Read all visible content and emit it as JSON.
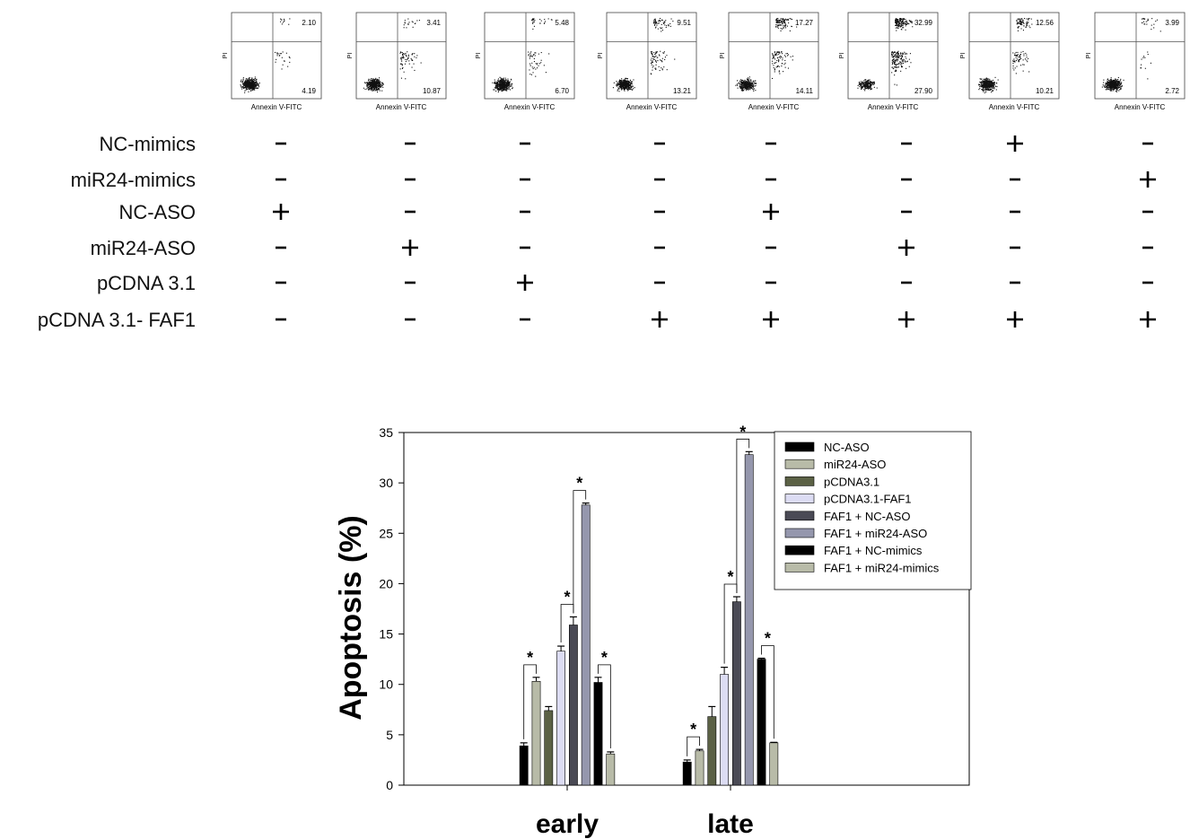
{
  "flow_panels": {
    "x_axis_label": "Annexin V-FITC",
    "y_axis_label": "PI",
    "panels": [
      {
        "upper_right": "2.10",
        "lower_right": "4.19"
      },
      {
        "upper_right": "3.41",
        "lower_right": "10.87"
      },
      {
        "upper_right": "5.48",
        "lower_right": "6.70"
      },
      {
        "upper_right": "9.51",
        "lower_right": "13.21"
      },
      {
        "upper_right": "17.27",
        "lower_right": "14.11"
      },
      {
        "upper_right": "32.99",
        "lower_right": "27.90"
      },
      {
        "upper_right": "12.56",
        "lower_right": "10.21"
      },
      {
        "upper_right": "3.99",
        "lower_right": "2.72"
      }
    ]
  },
  "conditions": {
    "rows": [
      {
        "label": "NC-mimics",
        "marks": [
          "-",
          "-",
          "-",
          "-",
          "-",
          "-",
          "+",
          "-"
        ]
      },
      {
        "label": "miR24-mimics",
        "marks": [
          "-",
          "-",
          "-",
          "-",
          "-",
          "-",
          "-",
          "+"
        ]
      },
      {
        "label": "NC-ASO",
        "marks": [
          "+",
          "-",
          "-",
          "-",
          "+",
          "-",
          "-",
          "-"
        ]
      },
      {
        "label": "miR24-ASO",
        "marks": [
          "-",
          "+",
          "-",
          "-",
          "-",
          "+",
          "-",
          "-"
        ]
      },
      {
        "label": "pCDNA 3.1",
        "marks": [
          "-",
          "-",
          "+",
          "-",
          "-",
          "-",
          "-",
          "-"
        ]
      },
      {
        "label": "pCDNA 3.1- FAF1",
        "marks": [
          "-",
          "-",
          "-",
          "+",
          "+",
          "+",
          "+",
          "+"
        ]
      }
    ]
  },
  "chart_data": {
    "type": "bar",
    "title": "",
    "xlabel": "",
    "ylabel": "Apoptosis (%)",
    "ylim": [
      0,
      35
    ],
    "yticks": [
      0,
      5,
      10,
      15,
      20,
      25,
      30,
      35
    ],
    "categories": [
      "early",
      "late"
    ],
    "legend_position": "top-right",
    "series": [
      {
        "name": "NC-ASO",
        "color": "#000000",
        "values": [
          3.9,
          2.3
        ],
        "errors": [
          0.3,
          0.2
        ]
      },
      {
        "name": "miR24-ASO",
        "color": "#b8bba8",
        "values": [
          10.3,
          3.4
        ],
        "errors": [
          0.4,
          0.15
        ]
      },
      {
        "name": "pCDNA3.1",
        "color": "#5b6145",
        "values": [
          7.4,
          6.8
        ],
        "errors": [
          0.4,
          1.0
        ]
      },
      {
        "name": "pCDNA3.1-FAF1",
        "color": "#dcdcf3",
        "values": [
          13.3,
          11.0
        ],
        "errors": [
          0.5,
          0.7
        ]
      },
      {
        "name": "FAF1 + NC-ASO",
        "color": "#4a4a55",
        "values": [
          15.9,
          18.2
        ],
        "errors": [
          0.8,
          0.5
        ]
      },
      {
        "name": "FAF1 + miR24-ASO",
        "color": "#9597ad",
        "values": [
          27.8,
          32.8
        ],
        "errors": [
          0.2,
          0.3
        ]
      },
      {
        "name": "FAF1 + NC-mimics",
        "color": "#000000",
        "values": [
          10.2,
          12.5
        ],
        "errors": [
          0.5,
          0.1
        ]
      },
      {
        "name": "FAF1 + miR24-mimics",
        "color": "#b8bba8",
        "values": [
          3.1,
          4.2
        ],
        "errors": [
          0.2,
          0.05
        ]
      }
    ],
    "significance": {
      "symbol": "*",
      "pairs": [
        [
          0,
          1
        ],
        [
          3,
          4
        ],
        [
          4,
          5
        ],
        [
          6,
          7
        ]
      ]
    }
  }
}
